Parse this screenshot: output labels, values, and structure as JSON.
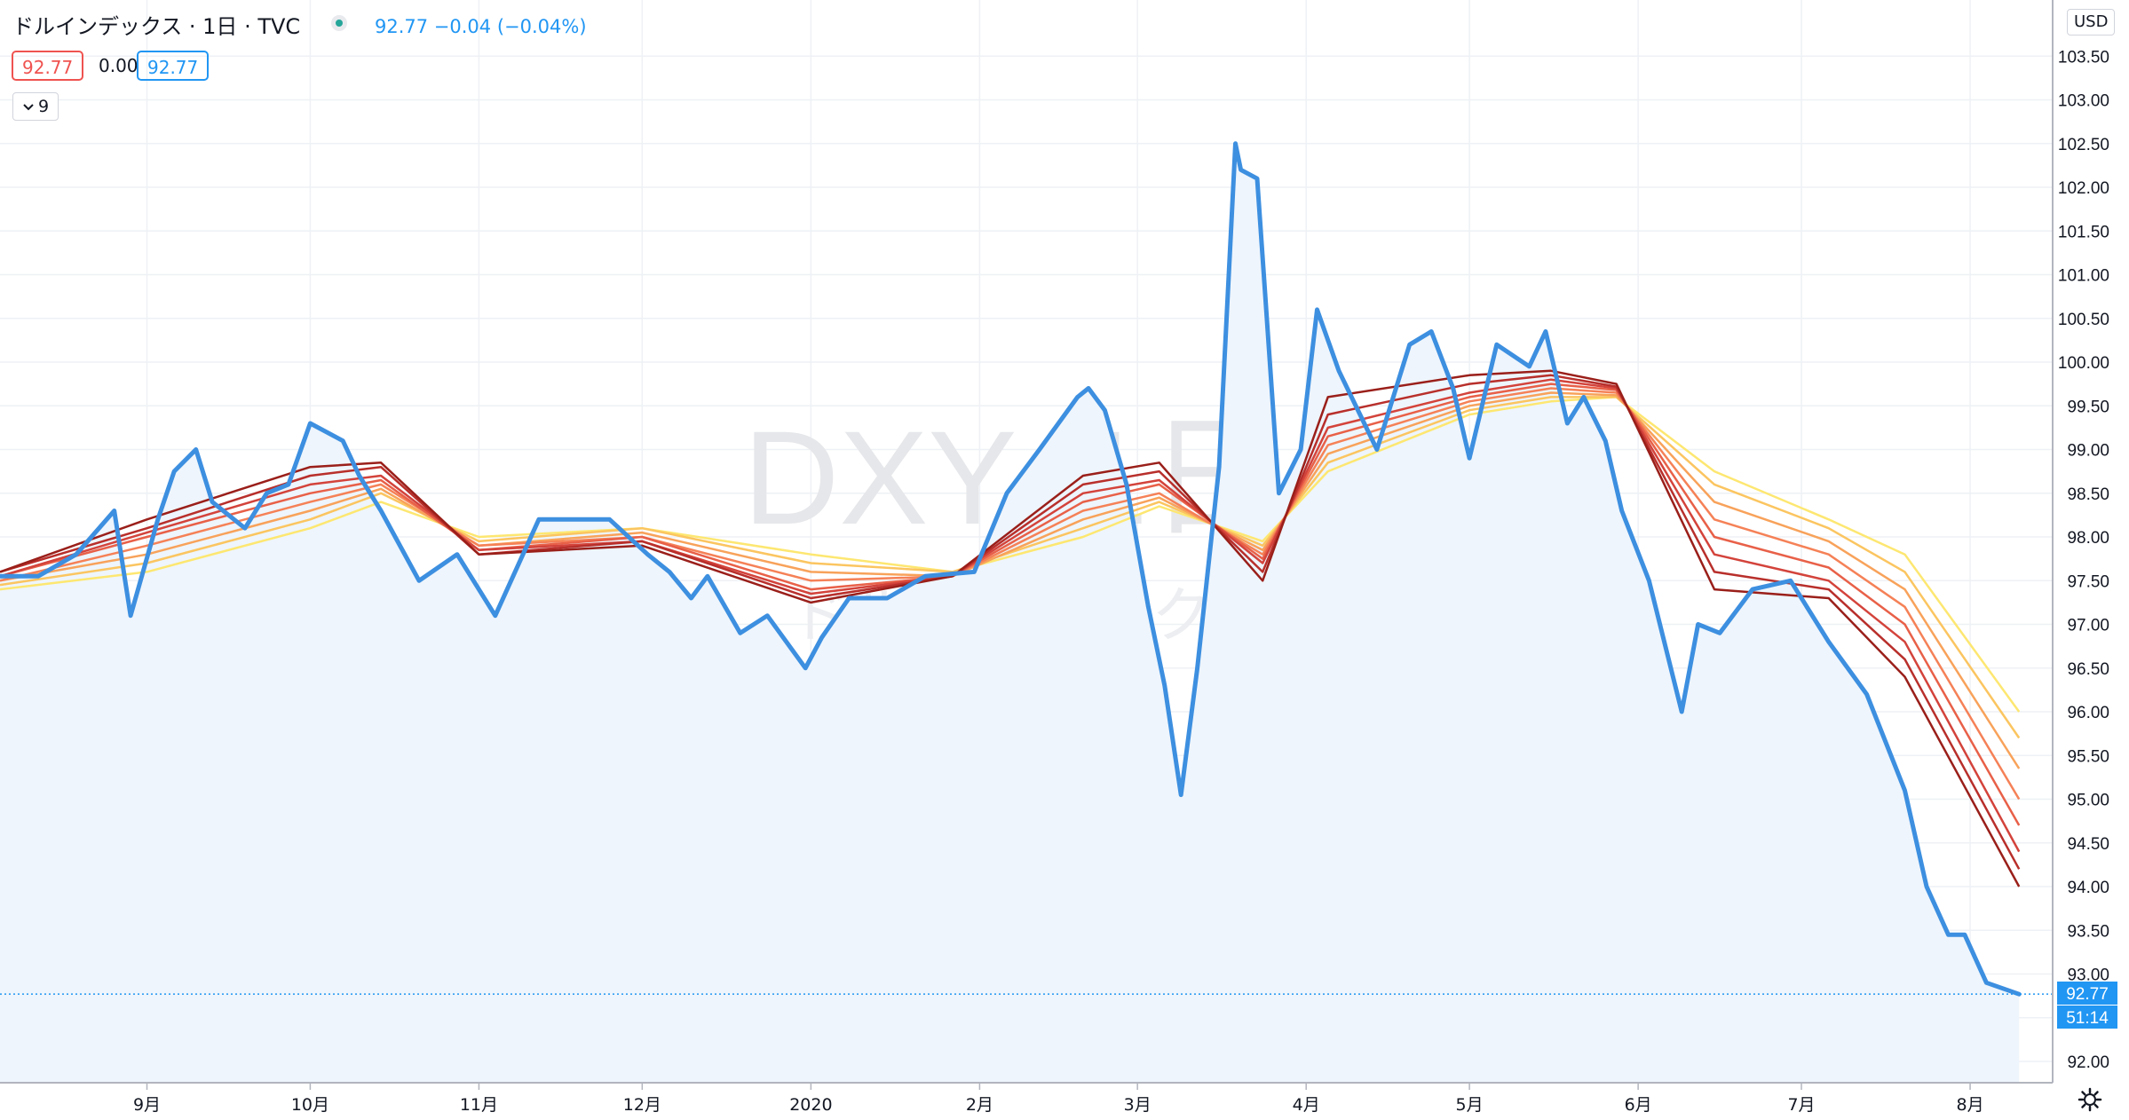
{
  "header": {
    "title": "ドルインデックス · 1日 · TVC",
    "quote": "92.77  −0.04 (−0.04%)",
    "value_open": "92.77",
    "value_change": "0.00",
    "value_last": "92.77",
    "collapse_label": "9",
    "currency": "USD"
  },
  "watermark": {
    "symbol": "DXY, 1日",
    "name": "ドルインデックス"
  },
  "price_tags": {
    "last": "92.77",
    "countdown": "51:14"
  },
  "icons": {
    "status": "status-dot-icon",
    "collapse": "chevron-down-icon",
    "settings": "gear-icon"
  },
  "colors": {
    "price_line": "#3d8fe0",
    "area_fill": "#eef5fc",
    "ribbon": [
      "#fde771",
      "#fbc560",
      "#f8a25a",
      "#f58157",
      "#e86048",
      "#d3433b",
      "#b82f2b",
      "#9a1f1a"
    ],
    "grid": "#eef1f5",
    "last_tag": "#2196f3",
    "axis_text": "#131722"
  },
  "chart_data": {
    "type": "line",
    "ylim": [
      91.7,
      103.9
    ],
    "yticks": [
      "92.00",
      "92.50",
      "93.00",
      "93.50",
      "94.00",
      "94.50",
      "95.00",
      "95.50",
      "96.00",
      "96.50",
      "97.00",
      "97.50",
      "98.00",
      "98.50",
      "99.00",
      "99.50",
      "100.00",
      "100.50",
      "101.00",
      "101.50",
      "102.00",
      "102.50",
      "103.00",
      "103.50"
    ],
    "xticks": [
      "9月",
      "10月",
      "11月",
      "12月",
      "2020",
      "2月",
      "3月",
      "4月",
      "5月",
      "6月",
      "7月",
      "8月"
    ],
    "series": [
      {
        "x": [
          "2019-08-05",
          "2019-08-12",
          "2019-08-19",
          "2019-08-26",
          "2019-08-29",
          "2019-09-03",
          "2019-09-06",
          "2019-09-10",
          "2019-09-13",
          "2019-09-19",
          "2019-09-23",
          "2019-09-27",
          "2019-10-01",
          "2019-10-07",
          "2019-10-10",
          "2019-10-14",
          "2019-10-21",
          "2019-10-28",
          "2019-11-04",
          "2019-11-12",
          "2019-11-18",
          "2019-11-25",
          "2019-12-02",
          "2019-12-06",
          "2019-12-10",
          "2019-12-13",
          "2019-12-19",
          "2019-12-24",
          "2019-12-31",
          "2020-01-03",
          "2020-01-08",
          "2020-01-15",
          "2020-01-22",
          "2020-01-31",
          "2020-02-06",
          "2020-02-12",
          "2020-02-19",
          "2020-02-21",
          "2020-02-24",
          "2020-02-28",
          "2020-03-03",
          "2020-03-06",
          "2020-03-09",
          "2020-03-12",
          "2020-03-16",
          "2020-03-19",
          "2020-03-20",
          "2020-03-23",
          "2020-03-27",
          "2020-03-31",
          "2020-04-03",
          "2020-04-07",
          "2020-04-14",
          "2020-04-20",
          "2020-04-24",
          "2020-04-28",
          "2020-05-01",
          "2020-05-06",
          "2020-05-12",
          "2020-05-15",
          "2020-05-19",
          "2020-05-22",
          "2020-05-26",
          "2020-05-29",
          "2020-06-03",
          "2020-06-09",
          "2020-06-12",
          "2020-06-16",
          "2020-06-22",
          "2020-06-29",
          "2020-07-06",
          "2020-07-13",
          "2020-07-20",
          "2020-07-24",
          "2020-07-28",
          "2020-07-31",
          "2020-08-04",
          "2020-08-10"
        ],
        "values": [
          97.55,
          97.55,
          97.8,
          98.3,
          97.1,
          98.2,
          98.75,
          99.0,
          98.4,
          98.1,
          98.5,
          98.6,
          99.3,
          99.1,
          98.7,
          98.3,
          97.5,
          97.8,
          97.1,
          98.2,
          98.2,
          98.2,
          97.8,
          97.6,
          97.3,
          97.55,
          96.9,
          97.1,
          96.5,
          96.85,
          97.3,
          97.3,
          97.55,
          97.6,
          98.5,
          99.0,
          99.6,
          99.7,
          99.45,
          98.6,
          97.2,
          96.3,
          95.05,
          96.5,
          98.8,
          102.5,
          102.2,
          102.1,
          98.5,
          99.0,
          100.6,
          99.9,
          99.0,
          100.2,
          100.35,
          99.7,
          98.9,
          100.2,
          99.95,
          100.35,
          99.3,
          99.6,
          99.1,
          98.3,
          97.5,
          96.0,
          97.0,
          96.9,
          97.4,
          97.5,
          96.8,
          96.2,
          95.1,
          94.0,
          93.45,
          93.45,
          92.9,
          92.77
        ]
      }
    ],
    "ribbon": [
      {
        "x": [
          "2019-08-05",
          "2019-09-01",
          "2019-10-01",
          "2019-10-14",
          "2019-11-01",
          "2019-12-01",
          "2020-01-01",
          "2020-01-27",
          "2020-02-20",
          "2020-03-05",
          "2020-03-24",
          "2020-04-05",
          "2020-05-01",
          "2020-05-16",
          "2020-05-28",
          "2020-06-15",
          "2020-07-06",
          "2020-07-20",
          "2020-08-10"
        ],
        "values": [
          97.4,
          97.6,
          98.1,
          98.4,
          98.0,
          98.1,
          97.8,
          97.6,
          98.0,
          98.35,
          97.95,
          98.75,
          99.4,
          99.55,
          99.6,
          98.75,
          98.2,
          97.8,
          96.0
        ]
      },
      {
        "x": [
          "2019-08-05",
          "2019-09-01",
          "2019-10-01",
          "2019-10-14",
          "2019-11-01",
          "2019-12-01",
          "2020-01-01",
          "2020-01-27",
          "2020-02-20",
          "2020-03-05",
          "2020-03-24",
          "2020-04-05",
          "2020-05-01",
          "2020-05-16",
          "2020-05-28",
          "2020-06-15",
          "2020-07-06",
          "2020-07-20",
          "2020-08-10"
        ],
        "values": [
          97.45,
          97.7,
          98.2,
          98.5,
          97.95,
          98.1,
          97.7,
          97.6,
          98.1,
          98.4,
          97.9,
          98.85,
          99.45,
          99.6,
          99.6,
          98.6,
          98.1,
          97.6,
          95.7
        ]
      },
      {
        "x": [
          "2019-08-05",
          "2019-09-01",
          "2019-10-01",
          "2019-10-14",
          "2019-11-01",
          "2019-12-01",
          "2020-01-01",
          "2020-01-27",
          "2020-02-20",
          "2020-03-05",
          "2020-03-24",
          "2020-04-05",
          "2020-05-01",
          "2020-05-16",
          "2020-05-28",
          "2020-06-15",
          "2020-07-06",
          "2020-07-20",
          "2020-08-10"
        ],
        "values": [
          97.5,
          97.8,
          98.3,
          98.55,
          97.9,
          98.05,
          97.6,
          97.55,
          98.2,
          98.45,
          97.85,
          98.95,
          99.5,
          99.65,
          99.62,
          98.4,
          97.95,
          97.4,
          95.35
        ]
      },
      {
        "x": [
          "2019-08-05",
          "2019-09-01",
          "2019-10-01",
          "2019-10-14",
          "2019-11-01",
          "2019-12-01",
          "2020-01-01",
          "2020-01-27",
          "2020-02-20",
          "2020-03-05",
          "2020-03-24",
          "2020-04-05",
          "2020-05-01",
          "2020-05-16",
          "2020-05-28",
          "2020-06-15",
          "2020-07-06",
          "2020-07-20",
          "2020-08-10"
        ],
        "values": [
          97.5,
          97.9,
          98.4,
          98.6,
          97.9,
          98.0,
          97.5,
          97.55,
          98.3,
          98.5,
          97.8,
          99.05,
          99.55,
          99.7,
          99.65,
          98.2,
          97.8,
          97.2,
          95.0
        ]
      },
      {
        "x": [
          "2019-08-05",
          "2019-09-01",
          "2019-10-01",
          "2019-10-14",
          "2019-11-01",
          "2019-12-01",
          "2020-01-01",
          "2020-01-27",
          "2020-02-20",
          "2020-03-05",
          "2020-03-24",
          "2020-04-05",
          "2020-05-01",
          "2020-05-16",
          "2020-05-28",
          "2020-06-15",
          "2020-07-06",
          "2020-07-20",
          "2020-08-10"
        ],
        "values": [
          97.55,
          98.0,
          98.5,
          98.65,
          97.85,
          98.0,
          97.4,
          97.55,
          98.4,
          98.6,
          97.75,
          99.15,
          99.6,
          99.75,
          99.68,
          98.0,
          97.65,
          97.0,
          94.7
        ]
      },
      {
        "x": [
          "2019-08-05",
          "2019-09-01",
          "2019-10-01",
          "2019-10-14",
          "2019-11-01",
          "2019-12-01",
          "2020-01-01",
          "2020-01-27",
          "2020-02-20",
          "2020-03-05",
          "2020-03-24",
          "2020-04-05",
          "2020-05-01",
          "2020-05-16",
          "2020-05-28",
          "2020-06-15",
          "2020-07-06",
          "2020-07-20",
          "2020-08-10"
        ],
        "values": [
          97.55,
          98.05,
          98.6,
          98.7,
          97.85,
          97.95,
          97.35,
          97.55,
          98.5,
          98.65,
          97.7,
          99.25,
          99.65,
          99.8,
          99.7,
          97.8,
          97.5,
          96.8,
          94.4
        ]
      },
      {
        "x": [
          "2019-08-05",
          "2019-09-01",
          "2019-10-01",
          "2019-10-14",
          "2019-11-01",
          "2019-12-01",
          "2020-01-01",
          "2020-01-27",
          "2020-02-20",
          "2020-03-05",
          "2020-03-24",
          "2020-04-05",
          "2020-05-01",
          "2020-05-16",
          "2020-05-28",
          "2020-06-15",
          "2020-07-06",
          "2020-07-20",
          "2020-08-10"
        ],
        "values": [
          97.6,
          98.1,
          98.7,
          98.8,
          97.8,
          97.95,
          97.3,
          97.55,
          98.6,
          98.75,
          97.6,
          99.4,
          99.75,
          99.85,
          99.72,
          97.6,
          97.4,
          96.6,
          94.2
        ]
      },
      {
        "x": [
          "2019-08-05",
          "2019-09-01",
          "2019-10-01",
          "2019-10-14",
          "2019-11-01",
          "2019-12-01",
          "2020-01-01",
          "2020-01-27",
          "2020-02-20",
          "2020-03-05",
          "2020-03-24",
          "2020-04-05",
          "2020-05-01",
          "2020-05-16",
          "2020-05-28",
          "2020-06-15",
          "2020-07-06",
          "2020-07-20",
          "2020-08-10"
        ],
        "values": [
          97.6,
          98.2,
          98.8,
          98.85,
          97.8,
          97.9,
          97.25,
          97.55,
          98.7,
          98.85,
          97.5,
          99.6,
          99.85,
          99.9,
          99.75,
          97.4,
          97.3,
          96.4,
          94.0
        ]
      }
    ],
    "last_value": 92.77,
    "grid": true,
    "log_scale": false
  }
}
